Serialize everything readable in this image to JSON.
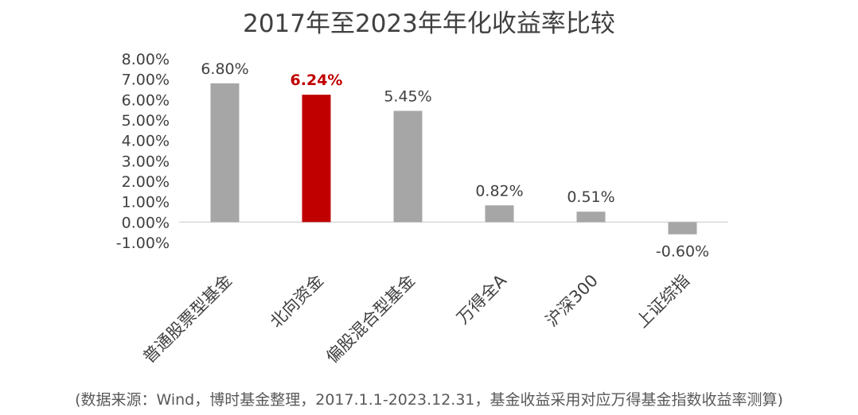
{
  "chart_data": {
    "type": "bar",
    "title": "2017年至2023年年化收益率比较",
    "categories": [
      "普通股票型基金",
      "北向资金",
      "偏股混合型基金",
      "万得全A",
      "沪深300",
      "上证综指"
    ],
    "values": [
      6.8,
      6.24,
      5.45,
      0.82,
      0.51,
      -0.6
    ],
    "data_labels": [
      "6.80%",
      "6.24%",
      "5.45%",
      "0.82%",
      "0.51%",
      "-0.60%"
    ],
    "y_ticks": [
      "8.00%",
      "7.00%",
      "6.00%",
      "5.00%",
      "4.00%",
      "3.00%",
      "2.00%",
      "1.00%",
      "0.00%",
      "-1.00%"
    ],
    "ylim": [
      -1,
      8
    ],
    "unit": "%",
    "grid": false,
    "legend": "none",
    "highlight_index": 1,
    "colors": {
      "bar": "#a6a6a6",
      "highlight": "#c00000",
      "axis": "#d9d9d9"
    }
  },
  "source_note": "(数据来源：Wind，博时基金整理，2017.1.1-2023.12.31，基金收益采用对应万得基金指数收益率测算)"
}
